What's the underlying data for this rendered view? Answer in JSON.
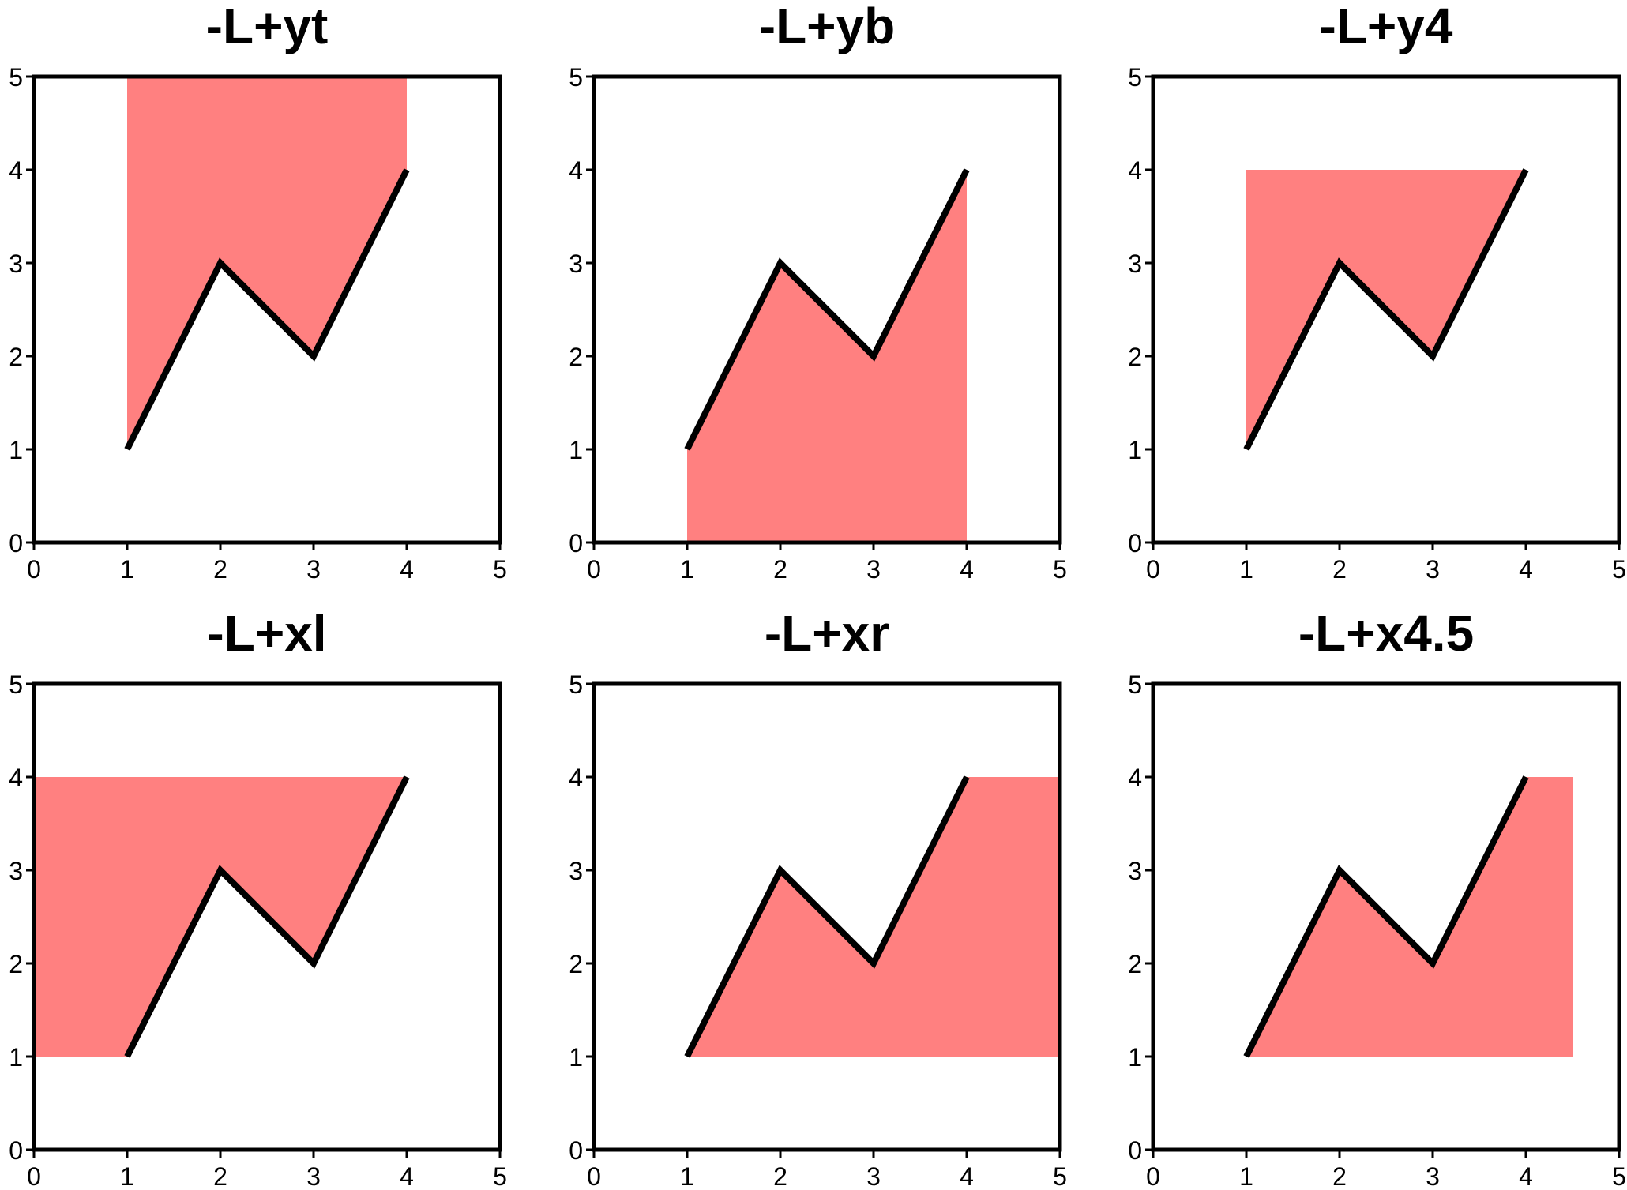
{
  "chart_data": [
    {
      "type": "area",
      "title": "-L+yt",
      "xlim": [
        0,
        5
      ],
      "ylim": [
        0,
        5
      ],
      "xticks": [
        "0",
        "1",
        "2",
        "3",
        "4",
        "5"
      ],
      "yticks": [
        "0",
        "1",
        "2",
        "3",
        "4",
        "5"
      ],
      "line": {
        "x": [
          1,
          2,
          3,
          4
        ],
        "y": [
          1,
          3,
          2,
          4
        ]
      },
      "fill": {
        "mode": "to y-max (top)",
        "x": [
          1,
          2,
          3,
          4,
          4,
          1
        ],
        "y": [
          1,
          3,
          2,
          4,
          5,
          5
        ]
      }
    },
    {
      "type": "area",
      "title": "-L+yb",
      "xlim": [
        0,
        5
      ],
      "ylim": [
        0,
        5
      ],
      "xticks": [
        "0",
        "1",
        "2",
        "3",
        "4",
        "5"
      ],
      "yticks": [
        "0",
        "1",
        "2",
        "3",
        "4",
        "5"
      ],
      "line": {
        "x": [
          1,
          2,
          3,
          4
        ],
        "y": [
          1,
          3,
          2,
          4
        ]
      },
      "fill": {
        "mode": "to y-min (bottom)",
        "x": [
          1,
          2,
          3,
          4,
          4,
          1
        ],
        "y": [
          1,
          3,
          2,
          4,
          0,
          0
        ]
      }
    },
    {
      "type": "area",
      "title": "-L+y4",
      "xlim": [
        0,
        5
      ],
      "ylim": [
        0,
        5
      ],
      "xticks": [
        "0",
        "1",
        "2",
        "3",
        "4",
        "5"
      ],
      "yticks": [
        "0",
        "1",
        "2",
        "3",
        "4",
        "5"
      ],
      "line": {
        "x": [
          1,
          2,
          3,
          4
        ],
        "y": [
          1,
          3,
          2,
          4
        ]
      },
      "fill": {
        "mode": "to y = 4",
        "x": [
          1,
          2,
          3,
          4,
          4,
          1
        ],
        "y": [
          1,
          3,
          2,
          4,
          4,
          4
        ]
      }
    },
    {
      "type": "area",
      "title": "-L+xl",
      "xlim": [
        0,
        5
      ],
      "ylim": [
        0,
        5
      ],
      "xticks": [
        "0",
        "1",
        "2",
        "3",
        "4",
        "5"
      ],
      "yticks": [
        "0",
        "1",
        "2",
        "3",
        "4",
        "5"
      ],
      "line": {
        "x": [
          1,
          2,
          3,
          4
        ],
        "y": [
          1,
          3,
          2,
          4
        ]
      },
      "fill": {
        "mode": "to x-min (left)",
        "x": [
          1,
          2,
          3,
          4,
          0,
          0
        ],
        "y": [
          1,
          3,
          2,
          4,
          4,
          1
        ]
      }
    },
    {
      "type": "area",
      "title": "-L+xr",
      "xlim": [
        0,
        5
      ],
      "ylim": [
        0,
        5
      ],
      "xticks": [
        "0",
        "1",
        "2",
        "3",
        "4",
        "5"
      ],
      "yticks": [
        "0",
        "1",
        "2",
        "3",
        "4",
        "5"
      ],
      "line": {
        "x": [
          1,
          2,
          3,
          4
        ],
        "y": [
          1,
          3,
          2,
          4
        ]
      },
      "fill": {
        "mode": "to x-max (right)",
        "x": [
          1,
          2,
          3,
          4,
          5,
          5
        ],
        "y": [
          1,
          3,
          2,
          4,
          4,
          1
        ]
      }
    },
    {
      "type": "area",
      "title": "-L+x4.5",
      "xlim": [
        0,
        5
      ],
      "ylim": [
        0,
        5
      ],
      "xticks": [
        "0",
        "1",
        "2",
        "3",
        "4",
        "5"
      ],
      "yticks": [
        "0",
        "1",
        "2",
        "3",
        "4",
        "5"
      ],
      "line": {
        "x": [
          1,
          2,
          3,
          4
        ],
        "y": [
          1,
          3,
          2,
          4
        ]
      },
      "fill": {
        "mode": "to x = 4.5",
        "x": [
          1,
          2,
          3,
          4,
          4.5,
          4.5
        ],
        "y": [
          1,
          3,
          2,
          4,
          4,
          1
        ]
      }
    }
  ],
  "colors": {
    "fill": "#ff8080",
    "line": "#000000",
    "frame": "#000000",
    "background": "#ffffff"
  }
}
